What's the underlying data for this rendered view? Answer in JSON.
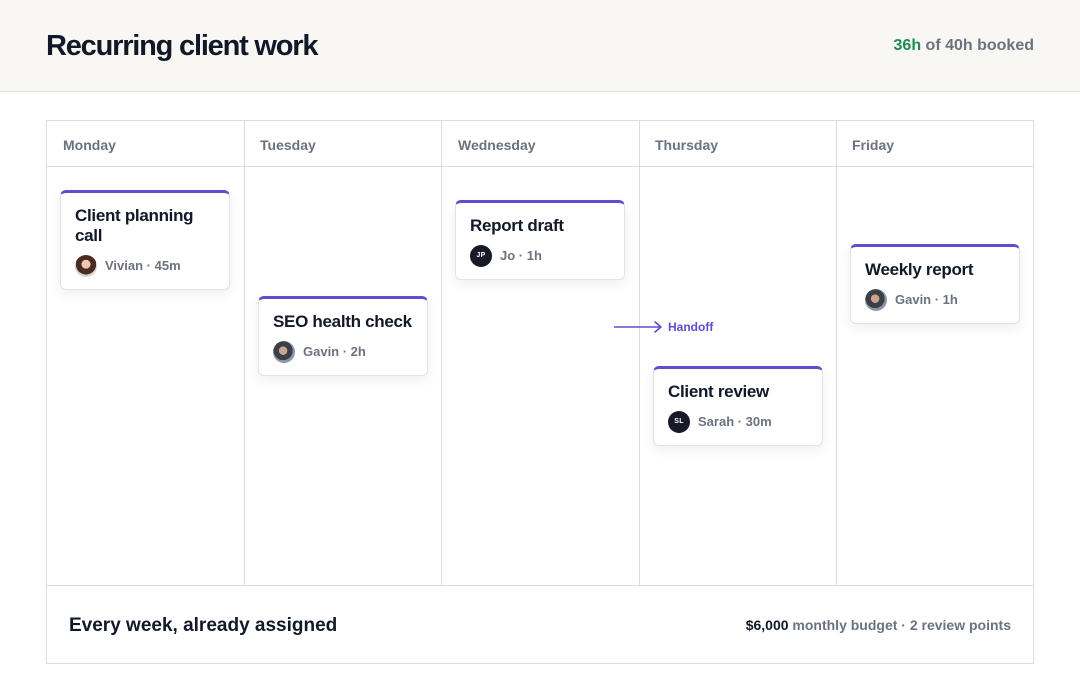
{
  "header": {
    "title": "Recurring client work",
    "booked_hours": "36h",
    "booked_rest": " of 40h booked"
  },
  "days": [
    "Monday",
    "Tuesday",
    "Wednesday",
    "Thursday",
    "Friday"
  ],
  "cards": {
    "monday": {
      "title": "Client planning call",
      "avatar": "avatar-photo",
      "meta": "Vivian · 45m"
    },
    "tuesday": {
      "title": "SEO health check",
      "avatar": "avatar-photo",
      "meta": "Gavin · 2h"
    },
    "wednesday": {
      "title": "Report draft",
      "avatar_initials": "JP",
      "meta": "Jo · 1h"
    },
    "thursday": {
      "title": "Client review",
      "avatar_initials": "SL",
      "meta": "Sarah · 30m"
    },
    "friday": {
      "title": "Weekly report",
      "avatar": "avatar-photo",
      "meta": "Gavin · 1h"
    }
  },
  "handoff": {
    "label": "Handoff",
    "icon": "arrow-right-icon"
  },
  "footer": {
    "title": "Every week, already assigned",
    "budget_amount": "$6,000",
    "budget_rest": " monthly budget · 2 review points"
  },
  "colors": {
    "accent": "#5b4fcf",
    "booked_hours": "#1f8a57",
    "text_primary": "#111827",
    "text_muted": "#6b7280"
  }
}
